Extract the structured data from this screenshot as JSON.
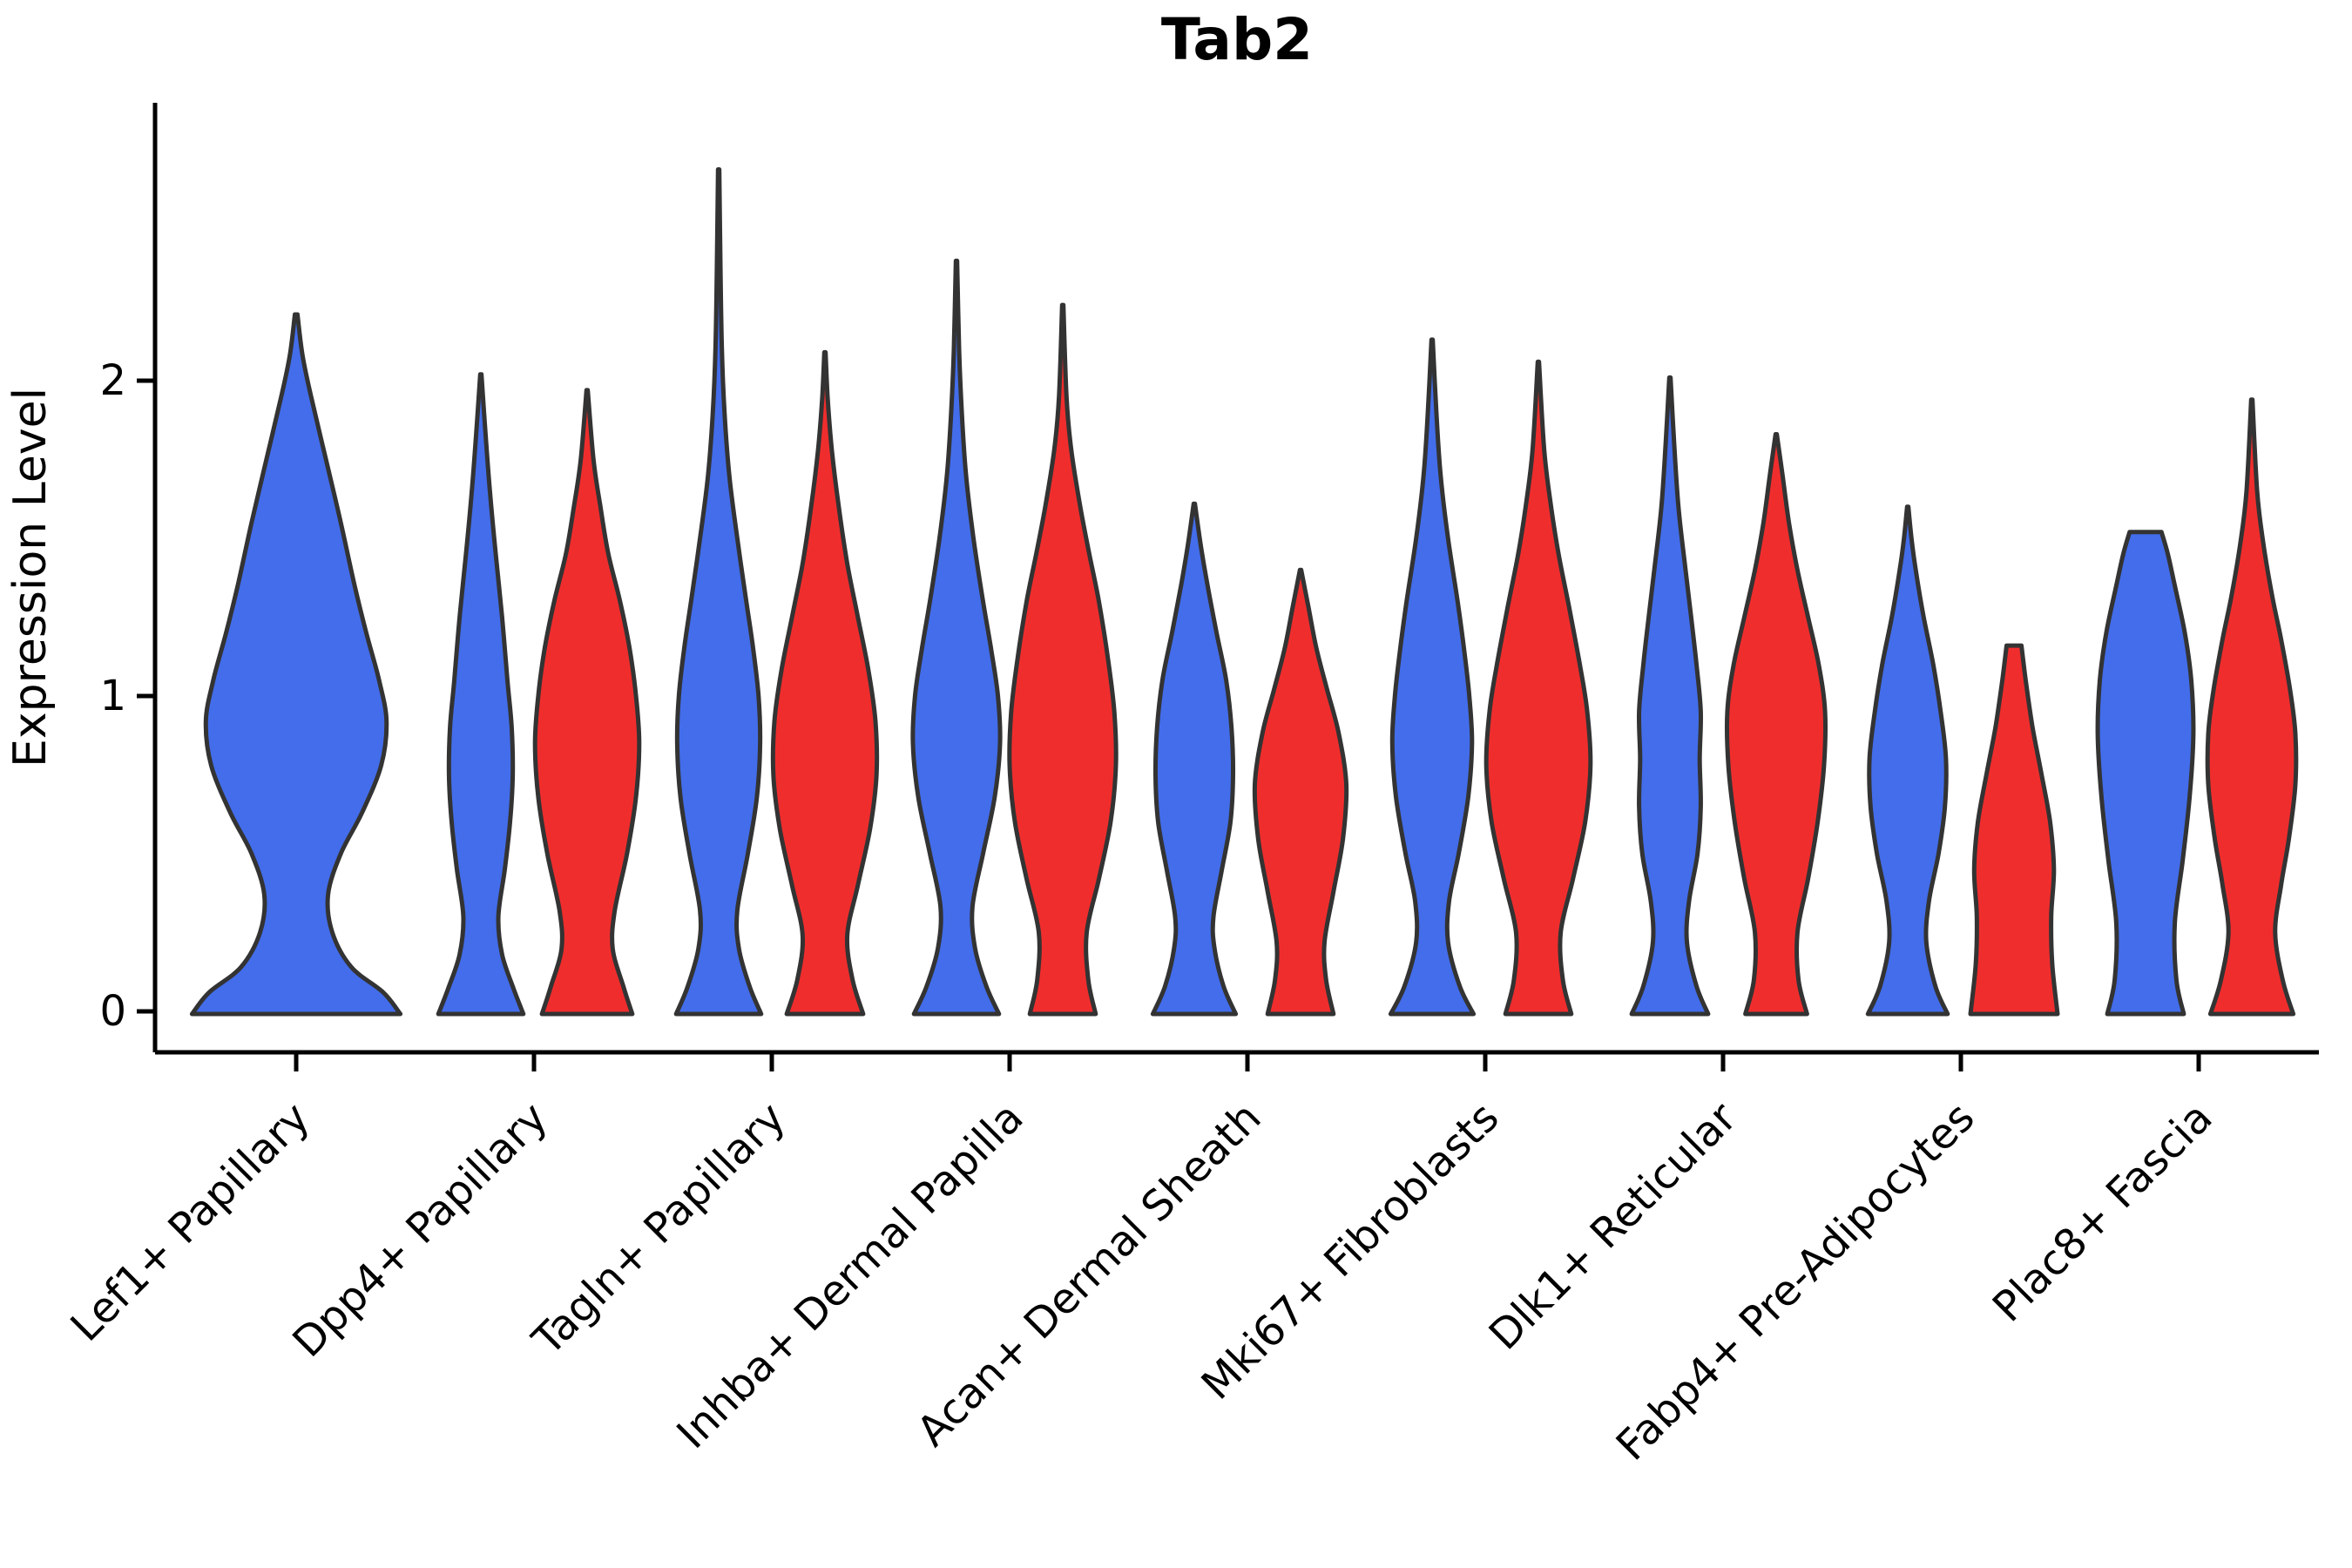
{
  "title": "Tab2",
  "axes": {
    "ylabel": "Expression Level",
    "yticks": [
      "0",
      "1",
      "2"
    ],
    "xlabel": ""
  },
  "colors": {
    "violin_blue": "#436DEA",
    "violin_red": "#F02D2D",
    "outline": "#333333",
    "axis": "#000000",
    "text": "#000000",
    "background": "#ffffff"
  },
  "chart_data": {
    "type": "violin",
    "title": "Tab2",
    "ylabel": "Expression Level",
    "xlabel": "",
    "ytick_values": [
      0,
      1,
      2
    ],
    "ylim": [
      -0.12,
      2.9
    ],
    "grid": false,
    "legend": "none",
    "categories": [
      "Lef1+ Papillary",
      "Dpp4+ Papillary",
      "Tagln+ Papillary",
      "Inhba+ Dermal Papilla",
      "Acan+ Dermal Sheath",
      "Mki67+ Fibroblasts",
      "Dlk1+ Reticular",
      "Fabp4+ Pre-Adipocytes",
      "Plac8+ Fascia"
    ],
    "groups": [
      {
        "key": "blue",
        "color": "#436DEA"
      },
      {
        "key": "red",
        "color": "#F02D2D"
      }
    ],
    "violins": [
      {
        "category_index": 0,
        "group": 0,
        "single": true,
        "max": 2.21,
        "flat_top": false,
        "profile": [
          [
            0,
            0.98
          ],
          [
            0.06,
            0.82
          ],
          [
            0.14,
            0.52
          ],
          [
            0.25,
            0.34
          ],
          [
            0.37,
            0.3
          ],
          [
            0.5,
            0.42
          ],
          [
            0.63,
            0.62
          ],
          [
            0.78,
            0.8
          ],
          [
            0.92,
            0.85
          ],
          [
            1.05,
            0.78
          ],
          [
            1.2,
            0.66
          ],
          [
            1.35,
            0.55
          ],
          [
            1.55,
            0.42
          ],
          [
            1.75,
            0.28
          ],
          [
            1.95,
            0.14
          ],
          [
            2.08,
            0.06
          ],
          [
            2.21,
            0.012
          ]
        ]
      },
      {
        "category_index": 1,
        "group": 0,
        "single": false,
        "max": 2.02,
        "flat_top": false,
        "profile": [
          [
            0,
            0.8
          ],
          [
            0.07,
            0.62
          ],
          [
            0.18,
            0.4
          ],
          [
            0.3,
            0.33
          ],
          [
            0.45,
            0.45
          ],
          [
            0.6,
            0.55
          ],
          [
            0.75,
            0.6
          ],
          [
            0.9,
            0.58
          ],
          [
            1.05,
            0.5
          ],
          [
            1.25,
            0.4
          ],
          [
            1.45,
            0.28
          ],
          [
            1.65,
            0.17
          ],
          [
            1.85,
            0.08
          ],
          [
            2.02,
            0.012
          ]
        ]
      },
      {
        "category_index": 1,
        "group": 1,
        "single": false,
        "max": 1.97,
        "flat_top": false,
        "profile": [
          [
            0,
            0.85
          ],
          [
            0.08,
            0.68
          ],
          [
            0.2,
            0.48
          ],
          [
            0.32,
            0.52
          ],
          [
            0.5,
            0.75
          ],
          [
            0.68,
            0.92
          ],
          [
            0.85,
            0.98
          ],
          [
            1.0,
            0.92
          ],
          [
            1.15,
            0.8
          ],
          [
            1.3,
            0.62
          ],
          [
            1.45,
            0.4
          ],
          [
            1.6,
            0.25
          ],
          [
            1.75,
            0.12
          ],
          [
            1.97,
            0.012
          ]
        ]
      },
      {
        "category_index": 2,
        "group": 0,
        "single": false,
        "max": 2.67,
        "flat_top": false,
        "profile": [
          [
            0,
            0.8
          ],
          [
            0.08,
            0.58
          ],
          [
            0.2,
            0.38
          ],
          [
            0.32,
            0.35
          ],
          [
            0.5,
            0.55
          ],
          [
            0.68,
            0.72
          ],
          [
            0.85,
            0.78
          ],
          [
            1.0,
            0.75
          ],
          [
            1.15,
            0.65
          ],
          [
            1.3,
            0.52
          ],
          [
            1.5,
            0.35
          ],
          [
            1.7,
            0.2
          ],
          [
            1.9,
            0.11
          ],
          [
            2.1,
            0.06
          ],
          [
            2.35,
            0.035
          ],
          [
            2.67,
            0.012
          ]
        ]
      },
      {
        "category_index": 2,
        "group": 1,
        "single": false,
        "max": 2.09,
        "flat_top": false,
        "profile": [
          [
            0,
            0.72
          ],
          [
            0.1,
            0.52
          ],
          [
            0.24,
            0.42
          ],
          [
            0.4,
            0.62
          ],
          [
            0.58,
            0.85
          ],
          [
            0.75,
            0.97
          ],
          [
            0.92,
            0.95
          ],
          [
            1.08,
            0.82
          ],
          [
            1.25,
            0.62
          ],
          [
            1.42,
            0.42
          ],
          [
            1.6,
            0.26
          ],
          [
            1.78,
            0.13
          ],
          [
            1.95,
            0.05
          ],
          [
            2.09,
            0.012
          ]
        ]
      },
      {
        "category_index": 3,
        "group": 0,
        "single": false,
        "max": 2.38,
        "flat_top": false,
        "profile": [
          [
            0,
            0.8
          ],
          [
            0.08,
            0.56
          ],
          [
            0.2,
            0.35
          ],
          [
            0.33,
            0.3
          ],
          [
            0.5,
            0.5
          ],
          [
            0.68,
            0.72
          ],
          [
            0.85,
            0.82
          ],
          [
            1.0,
            0.78
          ],
          [
            1.15,
            0.65
          ],
          [
            1.3,
            0.5
          ],
          [
            1.5,
            0.32
          ],
          [
            1.7,
            0.18
          ],
          [
            1.9,
            0.1
          ],
          [
            2.1,
            0.05
          ],
          [
            2.38,
            0.012
          ]
        ]
      },
      {
        "category_index": 3,
        "group": 1,
        "single": false,
        "max": 2.24,
        "flat_top": false,
        "profile": [
          [
            0,
            0.62
          ],
          [
            0.1,
            0.48
          ],
          [
            0.25,
            0.45
          ],
          [
            0.42,
            0.68
          ],
          [
            0.6,
            0.9
          ],
          [
            0.78,
            1.0
          ],
          [
            0.95,
            0.97
          ],
          [
            1.12,
            0.85
          ],
          [
            1.3,
            0.68
          ],
          [
            1.45,
            0.5
          ],
          [
            1.6,
            0.33
          ],
          [
            1.78,
            0.16
          ],
          [
            1.95,
            0.07
          ],
          [
            2.24,
            0.012
          ]
        ]
      },
      {
        "category_index": 4,
        "group": 0,
        "single": false,
        "max": 1.61,
        "flat_top": false,
        "profile": [
          [
            0,
            0.78
          ],
          [
            0.08,
            0.55
          ],
          [
            0.2,
            0.38
          ],
          [
            0.3,
            0.36
          ],
          [
            0.45,
            0.52
          ],
          [
            0.6,
            0.68
          ],
          [
            0.75,
            0.73
          ],
          [
            0.9,
            0.7
          ],
          [
            1.05,
            0.6
          ],
          [
            1.2,
            0.42
          ],
          [
            1.35,
            0.25
          ],
          [
            1.48,
            0.12
          ],
          [
            1.61,
            0.012
          ]
        ]
      },
      {
        "category_index": 4,
        "group": 1,
        "single": false,
        "max": 1.4,
        "flat_top": false,
        "profile": [
          [
            0,
            0.62
          ],
          [
            0.1,
            0.48
          ],
          [
            0.22,
            0.45
          ],
          [
            0.38,
            0.62
          ],
          [
            0.55,
            0.8
          ],
          [
            0.72,
            0.86
          ],
          [
            0.88,
            0.72
          ],
          [
            1.02,
            0.5
          ],
          [
            1.15,
            0.3
          ],
          [
            1.28,
            0.15
          ],
          [
            1.4,
            0.012
          ]
        ]
      },
      {
        "category_index": 5,
        "group": 0,
        "single": false,
        "max": 2.13,
        "flat_top": false,
        "profile": [
          [
            0,
            0.78
          ],
          [
            0.08,
            0.52
          ],
          [
            0.22,
            0.3
          ],
          [
            0.35,
            0.32
          ],
          [
            0.5,
            0.5
          ],
          [
            0.68,
            0.68
          ],
          [
            0.85,
            0.75
          ],
          [
            1.0,
            0.7
          ],
          [
            1.15,
            0.6
          ],
          [
            1.3,
            0.48
          ],
          [
            1.5,
            0.3
          ],
          [
            1.7,
            0.16
          ],
          [
            1.9,
            0.08
          ],
          [
            2.13,
            0.012
          ]
        ]
      },
      {
        "category_index": 5,
        "group": 1,
        "single": false,
        "max": 2.06,
        "flat_top": false,
        "profile": [
          [
            0,
            0.62
          ],
          [
            0.1,
            0.46
          ],
          [
            0.25,
            0.42
          ],
          [
            0.42,
            0.65
          ],
          [
            0.6,
            0.88
          ],
          [
            0.78,
            0.98
          ],
          [
            0.95,
            0.92
          ],
          [
            1.1,
            0.78
          ],
          [
            1.28,
            0.58
          ],
          [
            1.45,
            0.38
          ],
          [
            1.6,
            0.24
          ],
          [
            1.78,
            0.11
          ],
          [
            2.06,
            0.012
          ]
        ]
      },
      {
        "category_index": 6,
        "group": 0,
        "single": false,
        "max": 2.01,
        "flat_top": false,
        "profile": [
          [
            0,
            0.72
          ],
          [
            0.08,
            0.5
          ],
          [
            0.22,
            0.32
          ],
          [
            0.35,
            0.36
          ],
          [
            0.5,
            0.52
          ],
          [
            0.65,
            0.58
          ],
          [
            0.8,
            0.56
          ],
          [
            0.95,
            0.58
          ],
          [
            1.1,
            0.5
          ],
          [
            1.25,
            0.4
          ],
          [
            1.42,
            0.28
          ],
          [
            1.6,
            0.16
          ],
          [
            1.8,
            0.08
          ],
          [
            2.01,
            0.012
          ]
        ]
      },
      {
        "category_index": 6,
        "group": 1,
        "single": false,
        "max": 1.83,
        "flat_top": false,
        "profile": [
          [
            0,
            0.58
          ],
          [
            0.1,
            0.42
          ],
          [
            0.25,
            0.4
          ],
          [
            0.42,
            0.6
          ],
          [
            0.6,
            0.78
          ],
          [
            0.78,
            0.9
          ],
          [
            0.95,
            0.92
          ],
          [
            1.1,
            0.8
          ],
          [
            1.25,
            0.6
          ],
          [
            1.4,
            0.4
          ],
          [
            1.55,
            0.24
          ],
          [
            1.7,
            0.12
          ],
          [
            1.83,
            0.012
          ]
        ]
      },
      {
        "category_index": 7,
        "group": 0,
        "single": false,
        "max": 1.6,
        "flat_top": false,
        "profile": [
          [
            0,
            0.75
          ],
          [
            0.08,
            0.52
          ],
          [
            0.22,
            0.35
          ],
          [
            0.35,
            0.4
          ],
          [
            0.5,
            0.58
          ],
          [
            0.65,
            0.7
          ],
          [
            0.8,
            0.72
          ],
          [
            0.95,
            0.62
          ],
          [
            1.1,
            0.48
          ],
          [
            1.25,
            0.3
          ],
          [
            1.4,
            0.15
          ],
          [
            1.5,
            0.07
          ],
          [
            1.6,
            0.012
          ]
        ]
      },
      {
        "category_index": 7,
        "group": 1,
        "single": false,
        "max": 1.16,
        "flat_top": true,
        "top_width": 0.14,
        "profile": [
          [
            0,
            0.82
          ],
          [
            0.15,
            0.72
          ],
          [
            0.3,
            0.7
          ],
          [
            0.45,
            0.75
          ],
          [
            0.6,
            0.68
          ],
          [
            0.75,
            0.52
          ],
          [
            0.9,
            0.35
          ],
          [
            1.05,
            0.22
          ],
          [
            1.16,
            0.14
          ]
        ]
      },
      {
        "category_index": 8,
        "group": 0,
        "single": false,
        "max": 1.52,
        "flat_top": true,
        "top_width": 0.3,
        "profile": [
          [
            0,
            0.72
          ],
          [
            0.1,
            0.58
          ],
          [
            0.28,
            0.55
          ],
          [
            0.48,
            0.7
          ],
          [
            0.68,
            0.83
          ],
          [
            0.88,
            0.9
          ],
          [
            1.05,
            0.86
          ],
          [
            1.2,
            0.74
          ],
          [
            1.35,
            0.55
          ],
          [
            1.45,
            0.42
          ],
          [
            1.52,
            0.3
          ]
        ]
      },
      {
        "category_index": 8,
        "group": 1,
        "single": false,
        "max": 1.94,
        "flat_top": false,
        "profile": [
          [
            0,
            0.78
          ],
          [
            0.1,
            0.58
          ],
          [
            0.25,
            0.44
          ],
          [
            0.4,
            0.55
          ],
          [
            0.55,
            0.7
          ],
          [
            0.72,
            0.82
          ],
          [
            0.88,
            0.82
          ],
          [
            1.02,
            0.72
          ],
          [
            1.18,
            0.55
          ],
          [
            1.32,
            0.38
          ],
          [
            1.48,
            0.22
          ],
          [
            1.65,
            0.1
          ],
          [
            1.94,
            0.012
          ]
        ]
      }
    ]
  }
}
